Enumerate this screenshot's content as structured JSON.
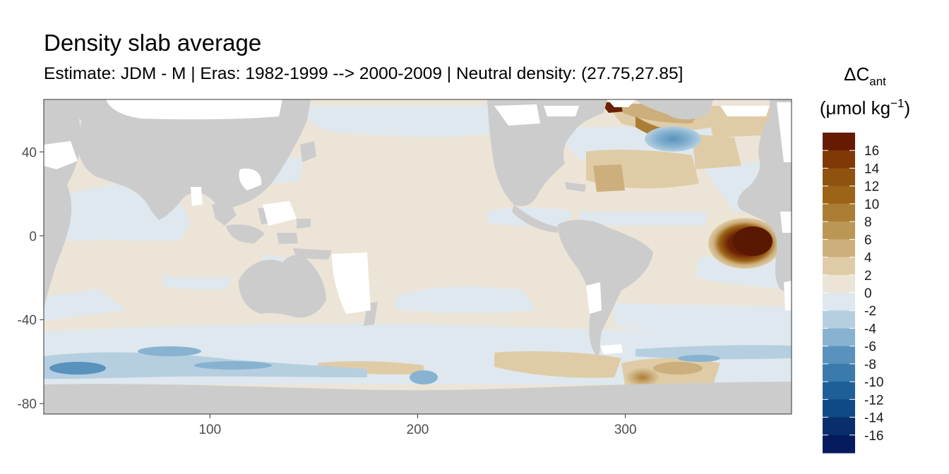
{
  "title": "Density slab average",
  "subtitle": "Estimate: JDM - M | Eras: 1982-1999 --> 2000-2009 | Neutral density: (27.75,27.85]",
  "colors": {
    "land": "#cccccc",
    "missing": "#ffffff",
    "panel_border": "#333333"
  },
  "chart_data": {
    "type": "heatmap",
    "xlim": [
      20,
      380
    ],
    "ylim": [
      -85,
      65
    ],
    "x_ticks": [
      100,
      200,
      300
    ],
    "y_ticks": [
      40,
      0,
      -40,
      -80
    ],
    "legend": {
      "title_main": "ΔC",
      "title_sub": "ant",
      "unit_open": "(μmol kg",
      "unit_sup": "−1",
      "unit_close": ")",
      "placement": "right",
      "labels": [
        "16",
        "14",
        "12",
        "10",
        "8",
        "6",
        "4",
        "2",
        "0",
        "-2",
        "-4",
        "-6",
        "-8",
        "-10",
        "-12",
        "-14",
        "-16"
      ],
      "colors": [
        "#651a02",
        "#803807",
        "#8f520f",
        "#9c6417",
        "#ab7d34",
        "#bb9655",
        "#ccaf7c",
        "#dfcca6",
        "#ece5d7",
        "#dfe8ee",
        "#b5cfe0",
        "#87b3d1",
        "#5892bd",
        "#3a7aad",
        "#1e5f98",
        "#0e4a85",
        "#0a2e6b",
        "#061b5e"
      ]
    }
  }
}
